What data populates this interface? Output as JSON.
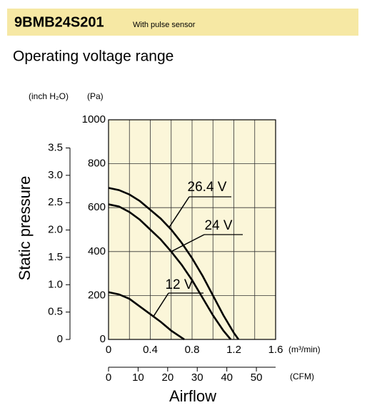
{
  "header": {
    "model": "9BMB24S201",
    "note": "With pulse sensor"
  },
  "chart_data": {
    "type": "line",
    "title": "Operating voltage range",
    "xlabel": "Airflow",
    "ylabel": "Static pressure",
    "x_unit": "(m³/min)",
    "x2_unit": "(CFM)",
    "y_unit": "(Pa)",
    "y2_unit": "(inch H₂O)",
    "xlim": [
      0,
      1.6
    ],
    "xticks": [
      0,
      0.4,
      0.8,
      1.2,
      1.6
    ],
    "xgrid": [
      0.2,
      0.6,
      1.0,
      1.4
    ],
    "x2lim": [
      0,
      56.5
    ],
    "x2ticks": [
      0,
      10,
      20,
      30,
      40,
      50
    ],
    "ylim": [
      0,
      1000
    ],
    "yticks": [
      0,
      200,
      400,
      600,
      800,
      1000
    ],
    "y2lim": [
      0,
      4.015
    ],
    "y2ticks": [
      0,
      0.5,
      {
        "value": 1,
        "label": "1.0"
      },
      1.5,
      {
        "value": 2,
        "label": "2.0"
      },
      2.5,
      {
        "value": 3,
        "label": "3.0"
      },
      3.5
    ],
    "grid": true,
    "background": "#fbf6d9",
    "series": [
      {
        "name": "26.4 V",
        "color": "#000000",
        "x": [
          0,
          0.1,
          0.2,
          0.3,
          0.4,
          0.5,
          0.6,
          0.7,
          0.8,
          0.9,
          1.0,
          1.1,
          1.2,
          1.245
        ],
        "values": [
          690,
          680,
          660,
          630,
          590,
          550,
          500,
          440,
          370,
          290,
          200,
          110,
          30,
          0
        ]
      },
      {
        "name": "24 V",
        "color": "#000000",
        "x": [
          0,
          0.1,
          0.2,
          0.3,
          0.4,
          0.5,
          0.6,
          0.7,
          0.8,
          0.9,
          1.0,
          1.1,
          1.17
        ],
        "values": [
          615,
          605,
          580,
          545,
          500,
          455,
          400,
          340,
          270,
          190,
          110,
          40,
          0
        ]
      },
      {
        "name": "12 V",
        "color": "#000000",
        "x": [
          0,
          0.1,
          0.2,
          0.3,
          0.4,
          0.5,
          0.6,
          0.725
        ],
        "values": [
          215,
          205,
          185,
          150,
          115,
          80,
          40,
          0
        ]
      }
    ]
  }
}
